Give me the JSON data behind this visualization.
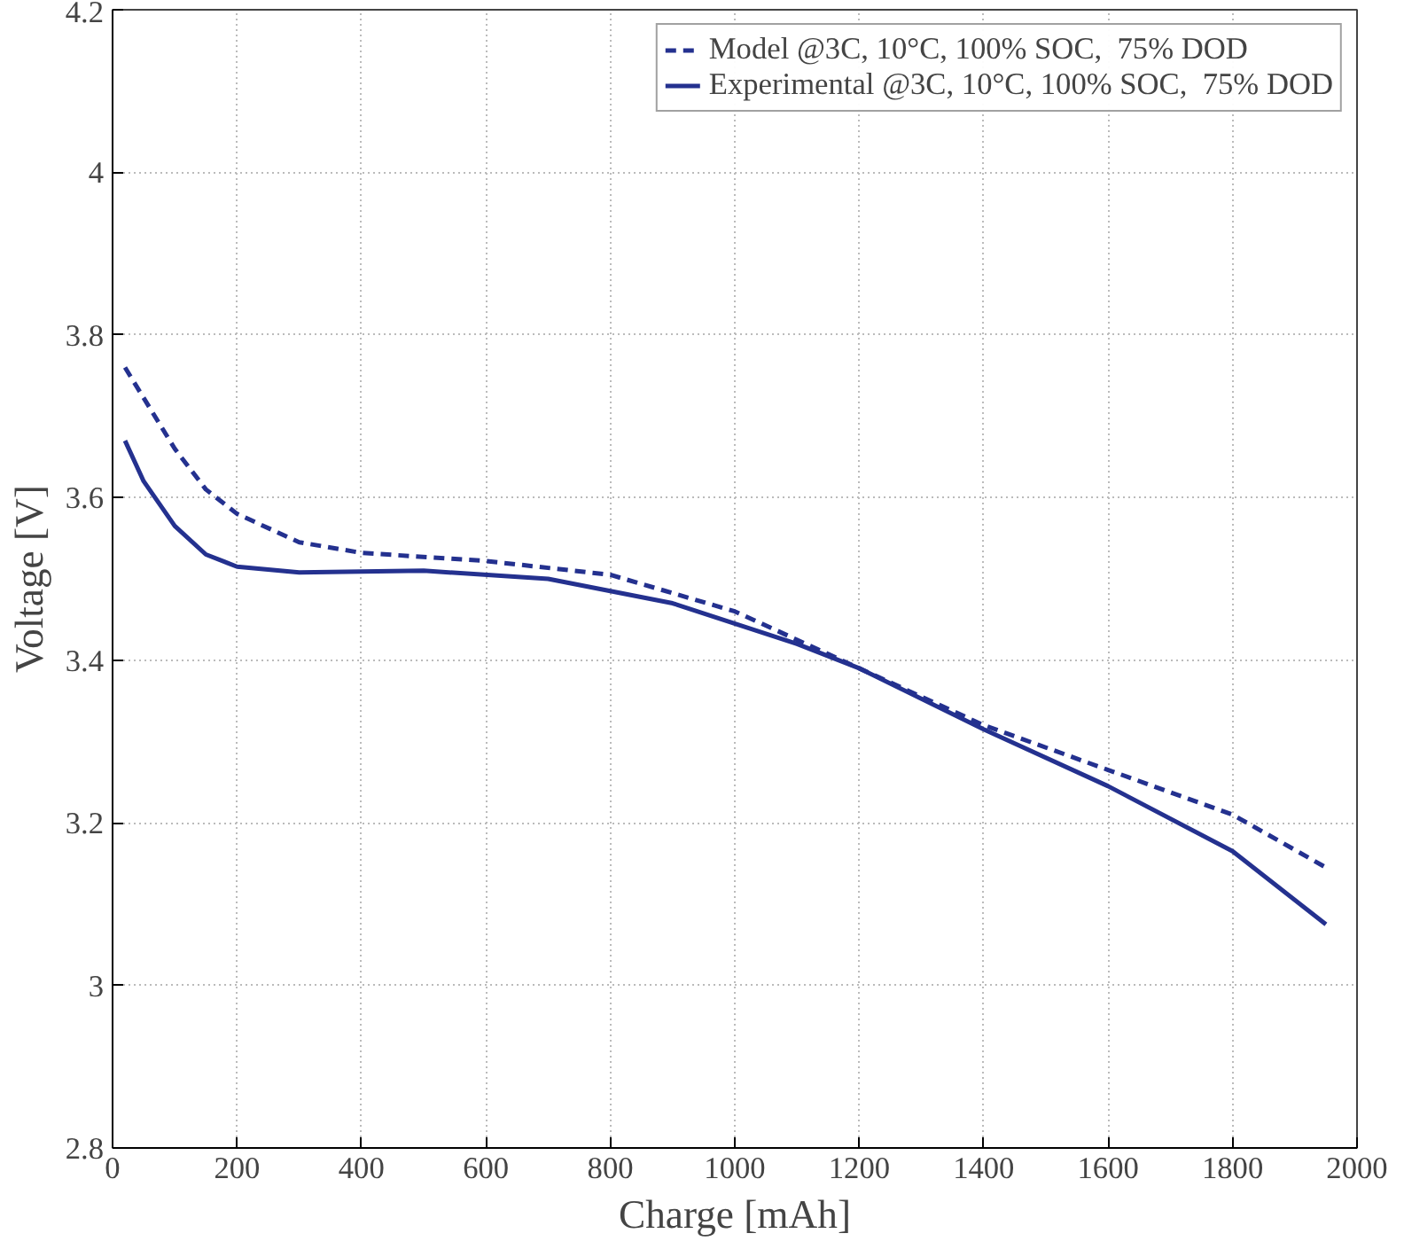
{
  "chart_data": {
    "type": "line",
    "xlabel": "Charge [mAh]",
    "ylabel": "Voltage [V]",
    "xlim": [
      0,
      2000
    ],
    "xticks": [
      0,
      200,
      400,
      600,
      800,
      1000,
      1200,
      1400,
      1600,
      1800,
      2000
    ],
    "ylim": [
      2.8,
      4.2
    ],
    "yticks": [
      2.8,
      3,
      3.2,
      3.4,
      3.6,
      3.8,
      4,
      4.2
    ],
    "grid": true,
    "legend": "top right",
    "series": [
      {
        "name": "Model @3C, 10°C, 100% SOC,  75% DOD",
        "color": "#24318f",
        "line_style": "dashed",
        "x": [
          20,
          60,
          100,
          150,
          200,
          300,
          400,
          600,
          800,
          1000,
          1200,
          1400,
          1600,
          1800,
          1950
        ],
        "values": [
          3.76,
          3.71,
          3.66,
          3.61,
          3.58,
          3.545,
          3.532,
          3.522,
          3.505,
          3.46,
          3.39,
          3.32,
          3.265,
          3.21,
          3.145
        ]
      },
      {
        "name": "Experimental @3C, 10°C, 100% SOC,  75% DOD",
        "color": "#24318f",
        "line_style": "solid",
        "x": [
          20,
          50,
          100,
          150,
          200,
          300,
          500,
          700,
          900,
          1100,
          1200,
          1400,
          1600,
          1800,
          1950
        ],
        "values": [
          3.67,
          3.62,
          3.565,
          3.53,
          3.515,
          3.508,
          3.51,
          3.5,
          3.47,
          3.42,
          3.39,
          3.315,
          3.245,
          3.165,
          3.075
        ]
      }
    ]
  }
}
